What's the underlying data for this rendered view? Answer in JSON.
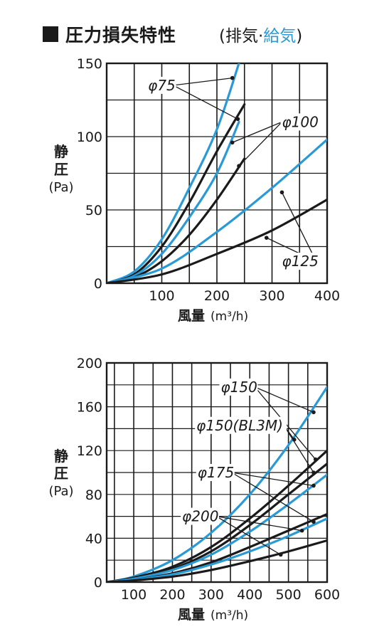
{
  "header": {
    "title": "圧力損失特性",
    "sub_open": "(",
    "sub_exhaust": "排気",
    "sub_dot": "·",
    "sub_supply": "給気",
    "sub_close": ")"
  },
  "colors": {
    "exhaust": "#1a1a1a",
    "supply": "#2a9ad6",
    "grid": "#1a1a1a"
  },
  "chart_data": [
    {
      "type": "line",
      "ylabel_lines": [
        "静",
        "圧",
        "(Pa)"
      ],
      "xlabel": "風量",
      "xunit": "(m³/h)",
      "xlim": [
        0,
        400
      ],
      "ylim": [
        0,
        150
      ],
      "xticks": [
        100,
        200,
        300,
        400
      ],
      "yticks": [
        0,
        50,
        100,
        150
      ],
      "series": [
        {
          "label": "φ75",
          "color": "supply",
          "points": [
            [
              0,
              0
            ],
            [
              50,
              8
            ],
            [
              100,
              30
            ],
            [
              150,
              65
            ],
            [
              200,
              105
            ],
            [
              240,
              150
            ]
          ]
        },
        {
          "label": "φ75",
          "color": "exhaust",
          "points": [
            [
              0,
              0
            ],
            [
              50,
              6
            ],
            [
              100,
              25
            ],
            [
              150,
              55
            ],
            [
              200,
              90
            ],
            [
              250,
              122
            ]
          ]
        },
        {
          "label": "φ100",
          "color": "supply",
          "points": [
            [
              0,
              0
            ],
            [
              50,
              5
            ],
            [
              100,
              20
            ],
            [
              150,
              45
            ],
            [
              200,
              75
            ],
            [
              240,
              110
            ]
          ]
        },
        {
          "label": "φ100",
          "color": "exhaust",
          "points": [
            [
              0,
              0
            ],
            [
              50,
              4
            ],
            [
              100,
              15
            ],
            [
              150,
              33
            ],
            [
              200,
              57
            ],
            [
              250,
              85
            ]
          ]
        },
        {
          "label": "φ125",
          "color": "supply",
          "points": [
            [
              0,
              0
            ],
            [
              100,
              10
            ],
            [
              200,
              35
            ],
            [
              300,
              65
            ],
            [
              400,
              98
            ]
          ]
        },
        {
          "label": "φ125",
          "color": "exhaust",
          "points": [
            [
              0,
              0
            ],
            [
              100,
              6
            ],
            [
              200,
              20
            ],
            [
              300,
              36
            ],
            [
              400,
              57
            ]
          ]
        }
      ],
      "annotations": [
        {
          "text": "φ75",
          "x": 75,
          "y": 135,
          "targets": [
            [
              228,
              140
            ],
            [
              238,
              112
            ]
          ]
        },
        {
          "text": "φ100",
          "x": 318,
          "y": 110,
          "targets": [
            [
              228,
              96
            ],
            [
              240,
              80
            ]
          ]
        },
        {
          "text": "φ125",
          "x": 318,
          "y": 15,
          "targets": [
            [
              318,
              62
            ],
            [
              290,
              31
            ]
          ]
        }
      ]
    },
    {
      "type": "line",
      "ylabel_lines": [
        "静",
        "圧",
        "(Pa)"
      ],
      "xlabel": "風量",
      "xunit": "(m³/h)",
      "xlim": [
        30,
        600
      ],
      "ylim": [
        0,
        200
      ],
      "xticks": [
        100,
        200,
        300,
        400,
        500,
        600
      ],
      "yticks": [
        0,
        40,
        80,
        120,
        160,
        200
      ],
      "series": [
        {
          "label": "φ150",
          "color": "supply",
          "points": [
            [
              30,
              0
            ],
            [
              100,
              5
            ],
            [
              200,
              20
            ],
            [
              300,
              45
            ],
            [
              400,
              80
            ],
            [
              500,
              125
            ],
            [
              600,
              178
            ]
          ]
        },
        {
          "label": "φ150",
          "color": "exhaust",
          "points": [
            [
              30,
              0
            ],
            [
              100,
              4
            ],
            [
              200,
              14
            ],
            [
              300,
              32
            ],
            [
              400,
              58
            ],
            [
              500,
              88
            ],
            [
              600,
              120
            ]
          ]
        },
        {
          "label": "φ150(BL3M)",
          "color": "exhaust",
          "points": [
            [
              30,
              0
            ],
            [
              100,
              3
            ],
            [
              200,
              12
            ],
            [
              300,
              28
            ],
            [
              400,
              52
            ],
            [
              500,
              80
            ],
            [
              600,
              108
            ]
          ]
        },
        {
          "label": "φ175",
          "color": "supply",
          "points": [
            [
              30,
              0
            ],
            [
              100,
              3
            ],
            [
              200,
              11
            ],
            [
              300,
              25
            ],
            [
              400,
              46
            ],
            [
              500,
              71
            ],
            [
              600,
              98
            ]
          ]
        },
        {
          "label": "φ175",
          "color": "exhaust",
          "points": [
            [
              30,
              0
            ],
            [
              100,
              2
            ],
            [
              200,
              8
            ],
            [
              300,
              18
            ],
            [
              400,
              32
            ],
            [
              500,
              47
            ],
            [
              600,
              62
            ]
          ]
        },
        {
          "label": "φ200",
          "color": "supply",
          "points": [
            [
              30,
              0
            ],
            [
              100,
              2
            ],
            [
              200,
              7
            ],
            [
              300,
              16
            ],
            [
              400,
              28
            ],
            [
              500,
              42
            ],
            [
              600,
              58
            ]
          ]
        },
        {
          "label": "φ200",
          "color": "exhaust",
          "points": [
            [
              30,
              0
            ],
            [
              100,
              1.5
            ],
            [
              200,
              5
            ],
            [
              300,
              11
            ],
            [
              400,
              19
            ],
            [
              500,
              28
            ],
            [
              600,
              38
            ]
          ]
        }
      ],
      "annotations": [
        {
          "text": "φ150",
          "x": 325,
          "y": 178,
          "targets": [
            [
              565,
              155
            ],
            [
              570,
              112
            ]
          ]
        },
        {
          "text": "φ150(BL3M)",
          "x": 262,
          "y": 143,
          "targets": [
            [
              515,
              130
            ],
            [
              565,
              100
            ]
          ]
        },
        {
          "text": "φ175",
          "x": 265,
          "y": 100,
          "targets": [
            [
              565,
              88
            ],
            [
              565,
              55
            ]
          ]
        },
        {
          "text": "φ200",
          "x": 225,
          "y": 60,
          "targets": [
            [
              535,
              47
            ],
            [
              480,
              25
            ]
          ]
        }
      ]
    }
  ]
}
